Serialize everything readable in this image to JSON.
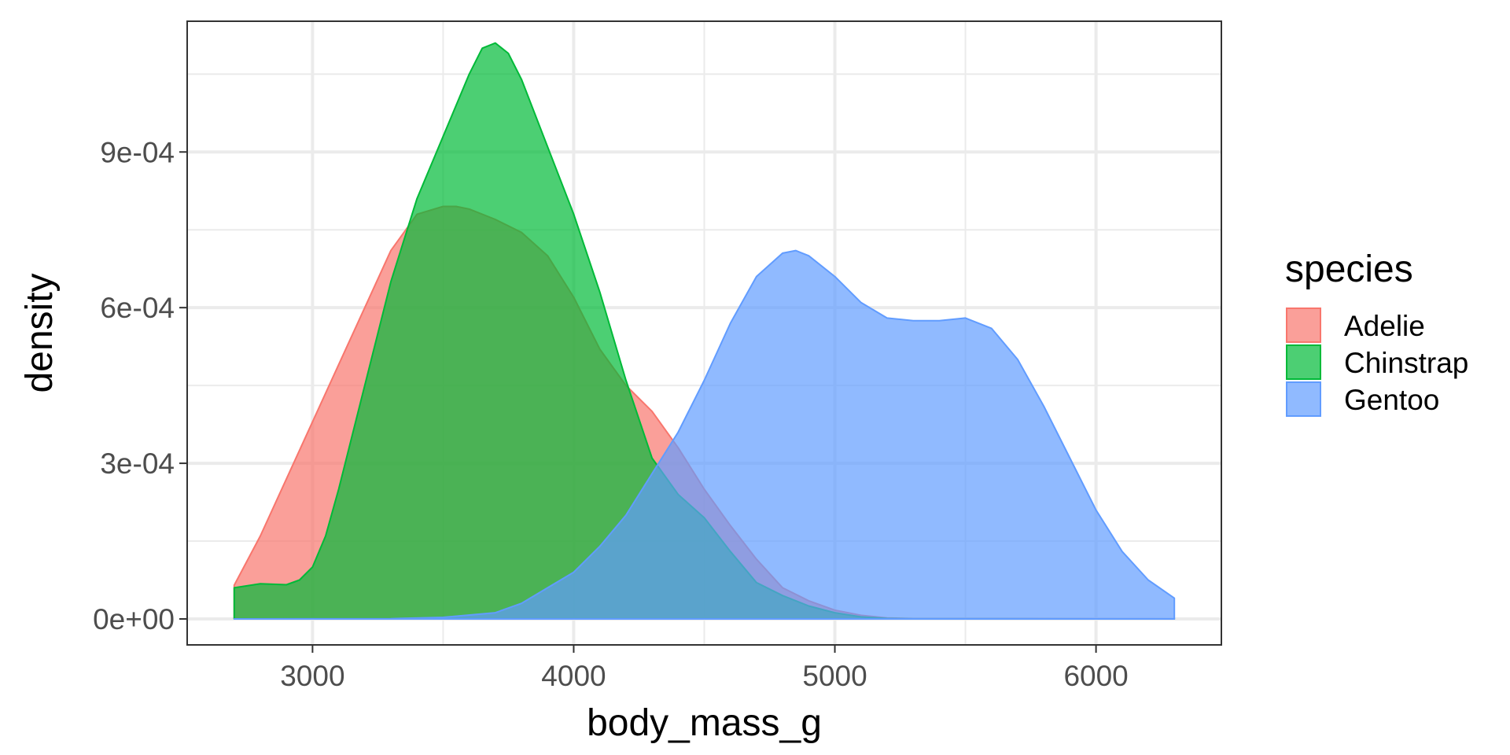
{
  "chart_data": {
    "type": "area",
    "subtype": "density",
    "title": "",
    "xlabel": "body_mass_g",
    "ylabel": "density",
    "xlim": [
      2520,
      6480
    ],
    "ylim": [
      -5e-05,
      0.001152
    ],
    "x_ticks": [
      3000,
      4000,
      5000,
      6000
    ],
    "x_tick_labels": [
      "3000",
      "4000",
      "5000",
      "6000"
    ],
    "y_ticks": [
      0,
      0.0003,
      0.0006,
      0.0009
    ],
    "y_tick_labels": [
      "0e+00",
      "3e-04",
      "6e-04",
      "9e-04"
    ],
    "grid": true,
    "legend": {
      "title": "species",
      "position": "right"
    },
    "series": [
      {
        "name": "Adelie",
        "fill": "#F8766D",
        "points": [
          [
            2700,
            6.5e-05
          ],
          [
            2800,
            0.00016
          ],
          [
            2900,
            0.00027
          ],
          [
            3000,
            0.00038
          ],
          [
            3100,
            0.00049
          ],
          [
            3200,
            0.0006
          ],
          [
            3300,
            0.00071
          ],
          [
            3400,
            0.00078
          ],
          [
            3500,
            0.000795
          ],
          [
            3550,
            0.000795
          ],
          [
            3600,
            0.00079
          ],
          [
            3700,
            0.00077
          ],
          [
            3800,
            0.000745
          ],
          [
            3900,
            0.0007
          ],
          [
            4000,
            0.00062
          ],
          [
            4100,
            0.00052
          ],
          [
            4200,
            0.00045
          ],
          [
            4300,
            0.0004
          ],
          [
            4400,
            0.00033
          ],
          [
            4500,
            0.00025
          ],
          [
            4600,
            0.00018
          ],
          [
            4700,
            0.000115
          ],
          [
            4800,
            6e-05
          ],
          [
            4900,
            3.5e-05
          ],
          [
            5000,
            1.7e-05
          ],
          [
            5100,
            7e-06
          ],
          [
            5200,
            2e-06
          ],
          [
            5300,
            5e-07
          ],
          [
            6300,
            0
          ]
        ]
      },
      {
        "name": "Chinstrap",
        "fill": "#00BA38",
        "points": [
          [
            2700,
            6e-05
          ],
          [
            2800,
            6.8e-05
          ],
          [
            2900,
            6.6e-05
          ],
          [
            2950,
            7.5e-05
          ],
          [
            3000,
            0.0001
          ],
          [
            3050,
            0.00016
          ],
          [
            3100,
            0.00025
          ],
          [
            3200,
            0.00045
          ],
          [
            3300,
            0.00065
          ],
          [
            3400,
            0.00081
          ],
          [
            3500,
            0.00093
          ],
          [
            3600,
            0.00105
          ],
          [
            3650,
            0.0011
          ],
          [
            3700,
            0.00111
          ],
          [
            3750,
            0.00109
          ],
          [
            3800,
            0.00104
          ],
          [
            3900,
            0.00091
          ],
          [
            4000,
            0.00078
          ],
          [
            4100,
            0.00063
          ],
          [
            4200,
            0.00046
          ],
          [
            4300,
            0.00031
          ],
          [
            4400,
            0.00024
          ],
          [
            4500,
            0.000195
          ],
          [
            4600,
            0.00013
          ],
          [
            4700,
            7e-05
          ],
          [
            4800,
            4.5e-05
          ],
          [
            4900,
            2.5e-05
          ],
          [
            5000,
            1.2e-05
          ],
          [
            5100,
            4e-06
          ],
          [
            5200,
            1e-06
          ],
          [
            5300,
            2e-07
          ],
          [
            6300,
            0
          ]
        ]
      },
      {
        "name": "Gentoo",
        "fill": "#619CFF",
        "points": [
          [
            2700,
            0
          ],
          [
            3300,
            5e-07
          ],
          [
            3500,
            3e-06
          ],
          [
            3700,
            1.2e-05
          ],
          [
            3800,
            3e-05
          ],
          [
            3900,
            6e-05
          ],
          [
            4000,
            9e-05
          ],
          [
            4100,
            0.00014
          ],
          [
            4200,
            0.0002
          ],
          [
            4300,
            0.00028
          ],
          [
            4400,
            0.00036
          ],
          [
            4500,
            0.00046
          ],
          [
            4600,
            0.00057
          ],
          [
            4700,
            0.00066
          ],
          [
            4800,
            0.000705
          ],
          [
            4850,
            0.00071
          ],
          [
            4900,
            0.0007
          ],
          [
            5000,
            0.00066
          ],
          [
            5100,
            0.00061
          ],
          [
            5200,
            0.00058
          ],
          [
            5300,
            0.000575
          ],
          [
            5400,
            0.000575
          ],
          [
            5500,
            0.00058
          ],
          [
            5600,
            0.00056
          ],
          [
            5700,
            0.0005
          ],
          [
            5800,
            0.00041
          ],
          [
            5900,
            0.00031
          ],
          [
            6000,
            0.00021
          ],
          [
            6100,
            0.00013
          ],
          [
            6200,
            7.5e-05
          ],
          [
            6300,
            4e-05
          ]
        ]
      }
    ]
  }
}
